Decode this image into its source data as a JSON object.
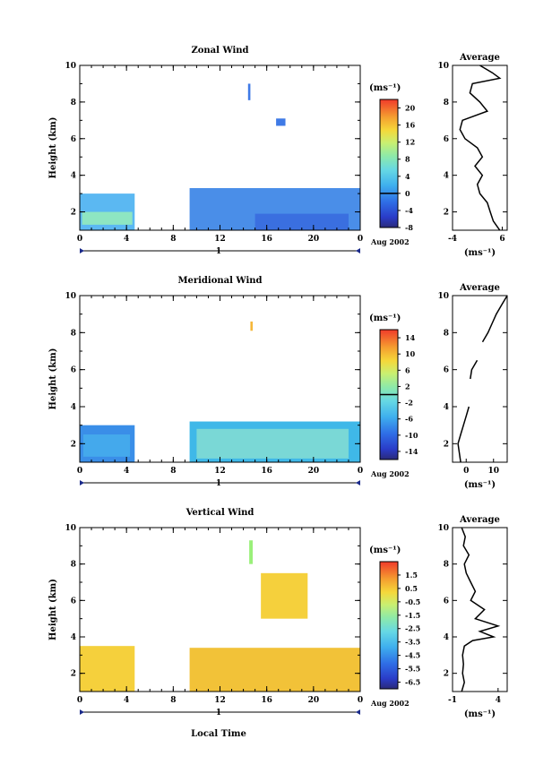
{
  "chart_data": [
    {
      "type": "heatmap",
      "panel": "zonal",
      "title": "Zonal Wind",
      "xlabel": "",
      "ylabel": "Height (km)",
      "xlim": [
        0,
        24
      ],
      "ylim": [
        1,
        10
      ],
      "x_ticks": [
        "0",
        "4",
        "8",
        "12",
        "16",
        "20",
        "0"
      ],
      "y_ticks": [
        "2",
        "4",
        "6",
        "8",
        "10"
      ],
      "day_marker": "1",
      "date_label": "Aug 2002",
      "colorbar": {
        "unit_label": "(ms⁻¹)",
        "min": -8,
        "max": 22,
        "ticks": [
          "-8",
          "-4",
          "0",
          "4",
          "8",
          "12",
          "16",
          "20"
        ],
        "zero_line": 0
      },
      "data_regions": [
        {
          "x": [
            0,
            4.7
          ],
          "y": [
            1.0,
            3.0
          ],
          "value": 4,
          "color": "#5bb8f2"
        },
        {
          "x": [
            0.2,
            4.5
          ],
          "y": [
            1.3,
            2.0
          ],
          "value": 6,
          "color": "#8ee6c2"
        },
        {
          "x": [
            9.4,
            24
          ],
          "y": [
            1.0,
            3.3
          ],
          "value": 1,
          "color": "#4a8ee8"
        },
        {
          "x": [
            15,
            23
          ],
          "y": [
            1.0,
            1.9
          ],
          "value": -2,
          "color": "#3a6fe0"
        },
        {
          "x": [
            14.4,
            14.6
          ],
          "y": [
            8.1,
            9.0
          ],
          "value": 0,
          "color": "#3f7ae6"
        },
        {
          "x": [
            16.8,
            17.6
          ],
          "y": [
            6.7,
            7.1
          ],
          "value": 0,
          "color": "#3f7ae6"
        }
      ],
      "average_profile": {
        "title": "Average",
        "xlabel": "(ms⁻¹)",
        "xlim": [
          -4,
          7
        ],
        "x_ticks": [
          "-4",
          "6"
        ],
        "y_ticks": [
          "2",
          "4",
          "6",
          "8",
          "10"
        ],
        "height": [
          1.0,
          1.5,
          2.0,
          2.5,
          3.0,
          3.5,
          4.0,
          4.5,
          5.0,
          5.5,
          6.0,
          6.5,
          7.0,
          7.5,
          8.0,
          8.5,
          9.0,
          9.3,
          9.6,
          10.0
        ],
        "value": [
          5.5,
          4.2,
          3.6,
          3.0,
          1.5,
          1.0,
          2.0,
          0.5,
          2.0,
          1.0,
          -1.5,
          -2.5,
          -2.0,
          3.0,
          1.5,
          -0.5,
          0.0,
          5.5,
          4.0,
          1.5
        ]
      }
    },
    {
      "type": "heatmap",
      "panel": "meridional",
      "title": "Meridional Wind",
      "xlabel": "",
      "ylabel": "Height (km)",
      "xlim": [
        0,
        24
      ],
      "ylim": [
        1,
        10
      ],
      "x_ticks": [
        "0",
        "4",
        "8",
        "12",
        "16",
        "20",
        "0"
      ],
      "y_ticks": [
        "2",
        "4",
        "6",
        "8",
        "10"
      ],
      "day_marker": "1",
      "date_label": "Aug 2002",
      "colorbar": {
        "unit_label": "(ms⁻¹)",
        "min": -16,
        "max": 16,
        "ticks": [
          "-14",
          "-10",
          "-6",
          "-2",
          "2",
          "6",
          "10",
          "14"
        ],
        "zero_line": 0
      },
      "data_regions": [
        {
          "x": [
            0,
            4.7
          ],
          "y": [
            1.0,
            3.0
          ],
          "value": -6,
          "color": "#3a8ee8"
        },
        {
          "x": [
            0.3,
            4.3
          ],
          "y": [
            1.3,
            2.5
          ],
          "value": -4,
          "color": "#44a9ec"
        },
        {
          "x": [
            9.4,
            24
          ],
          "y": [
            1.0,
            3.2
          ],
          "value": -3,
          "color": "#3fb8e8"
        },
        {
          "x": [
            10,
            23
          ],
          "y": [
            1.2,
            2.8
          ],
          "value": -1,
          "color": "#7ad8d6"
        },
        {
          "x": [
            14.6,
            14.8
          ],
          "y": [
            8.1,
            8.6
          ],
          "value": 8,
          "color": "#f5b73a"
        }
      ],
      "average_profile": {
        "title": "Average",
        "xlabel": "(ms⁻¹)",
        "xlim": [
          -5,
          15
        ],
        "x_ticks": [
          "0",
          "10"
        ],
        "y_ticks": [
          "2",
          "4",
          "6",
          "8",
          "10"
        ],
        "height": [
          1.0,
          1.5,
          2.0,
          2.5,
          3.0,
          3.5,
          4.0,
          4.5,
          5.0,
          5.5,
          6.0,
          6.5,
          7.0,
          7.5,
          8.0,
          8.5,
          9.0,
          9.5,
          10.0
        ],
        "value": [
          -2.0,
          -2.5,
          -3.0,
          -2.0,
          -1.0,
          0.0,
          1.0,
          null,
          null,
          1.5,
          2.0,
          4.0,
          null,
          6.0,
          8.0,
          9.5,
          11.0,
          13.0,
          15.0
        ]
      }
    },
    {
      "type": "heatmap",
      "panel": "vertical",
      "title": "Vertical Wind",
      "xlabel": "Local Time",
      "ylabel": "Height (km)",
      "xlim": [
        0,
        24
      ],
      "ylim": [
        1,
        10
      ],
      "x_ticks": [
        "0",
        "4",
        "8",
        "12",
        "16",
        "20",
        "0"
      ],
      "y_ticks": [
        "2",
        "4",
        "6",
        "8",
        "10"
      ],
      "day_marker": "1",
      "date_label": "Aug 2002",
      "colorbar": {
        "unit_label": "(ms⁻¹)",
        "min": -7,
        "max": 2.5,
        "ticks": [
          "-6.5",
          "-5.5",
          "-4.5",
          "-3.5",
          "-2.5",
          "-1.5",
          "-0.5",
          "0.5",
          "1.5"
        ]
      },
      "data_regions": [
        {
          "x": [
            0,
            4.7
          ],
          "y": [
            1.0,
            3.5
          ],
          "value": 0.2,
          "color": "#f5d03c"
        },
        {
          "x": [
            9.4,
            24
          ],
          "y": [
            1.0,
            3.4
          ],
          "value": 0.4,
          "color": "#f2c238"
        },
        {
          "x": [
            14.5,
            14.8
          ],
          "y": [
            8.0,
            9.3
          ],
          "value": -1.0,
          "color": "#9af07a"
        },
        {
          "x": [
            15.5,
            19.5
          ],
          "y": [
            5.0,
            7.5
          ],
          "value": 0.3,
          "color": "#f5d03c"
        }
      ],
      "average_profile": {
        "title": "Average",
        "xlabel": "(ms⁻¹)",
        "xlim": [
          -1,
          5
        ],
        "x_ticks": [
          "-1",
          "4"
        ],
        "y_ticks": [
          "2",
          "4",
          "6",
          "8",
          "10"
        ],
        "height": [
          1.0,
          1.5,
          2.0,
          2.5,
          3.0,
          3.5,
          3.8,
          4.0,
          4.3,
          4.6,
          5.0,
          5.5,
          6.0,
          6.5,
          7.0,
          7.5,
          8.0,
          8.5,
          9.0,
          9.5,
          10.0
        ],
        "value": [
          0.0,
          0.3,
          0.1,
          0.2,
          0.1,
          0.3,
          1.2,
          3.5,
          2.0,
          4.0,
          1.5,
          2.5,
          1.0,
          1.5,
          1.0,
          0.5,
          0.3,
          0.8,
          0.2,
          0.4,
          0.0
        ]
      }
    }
  ]
}
